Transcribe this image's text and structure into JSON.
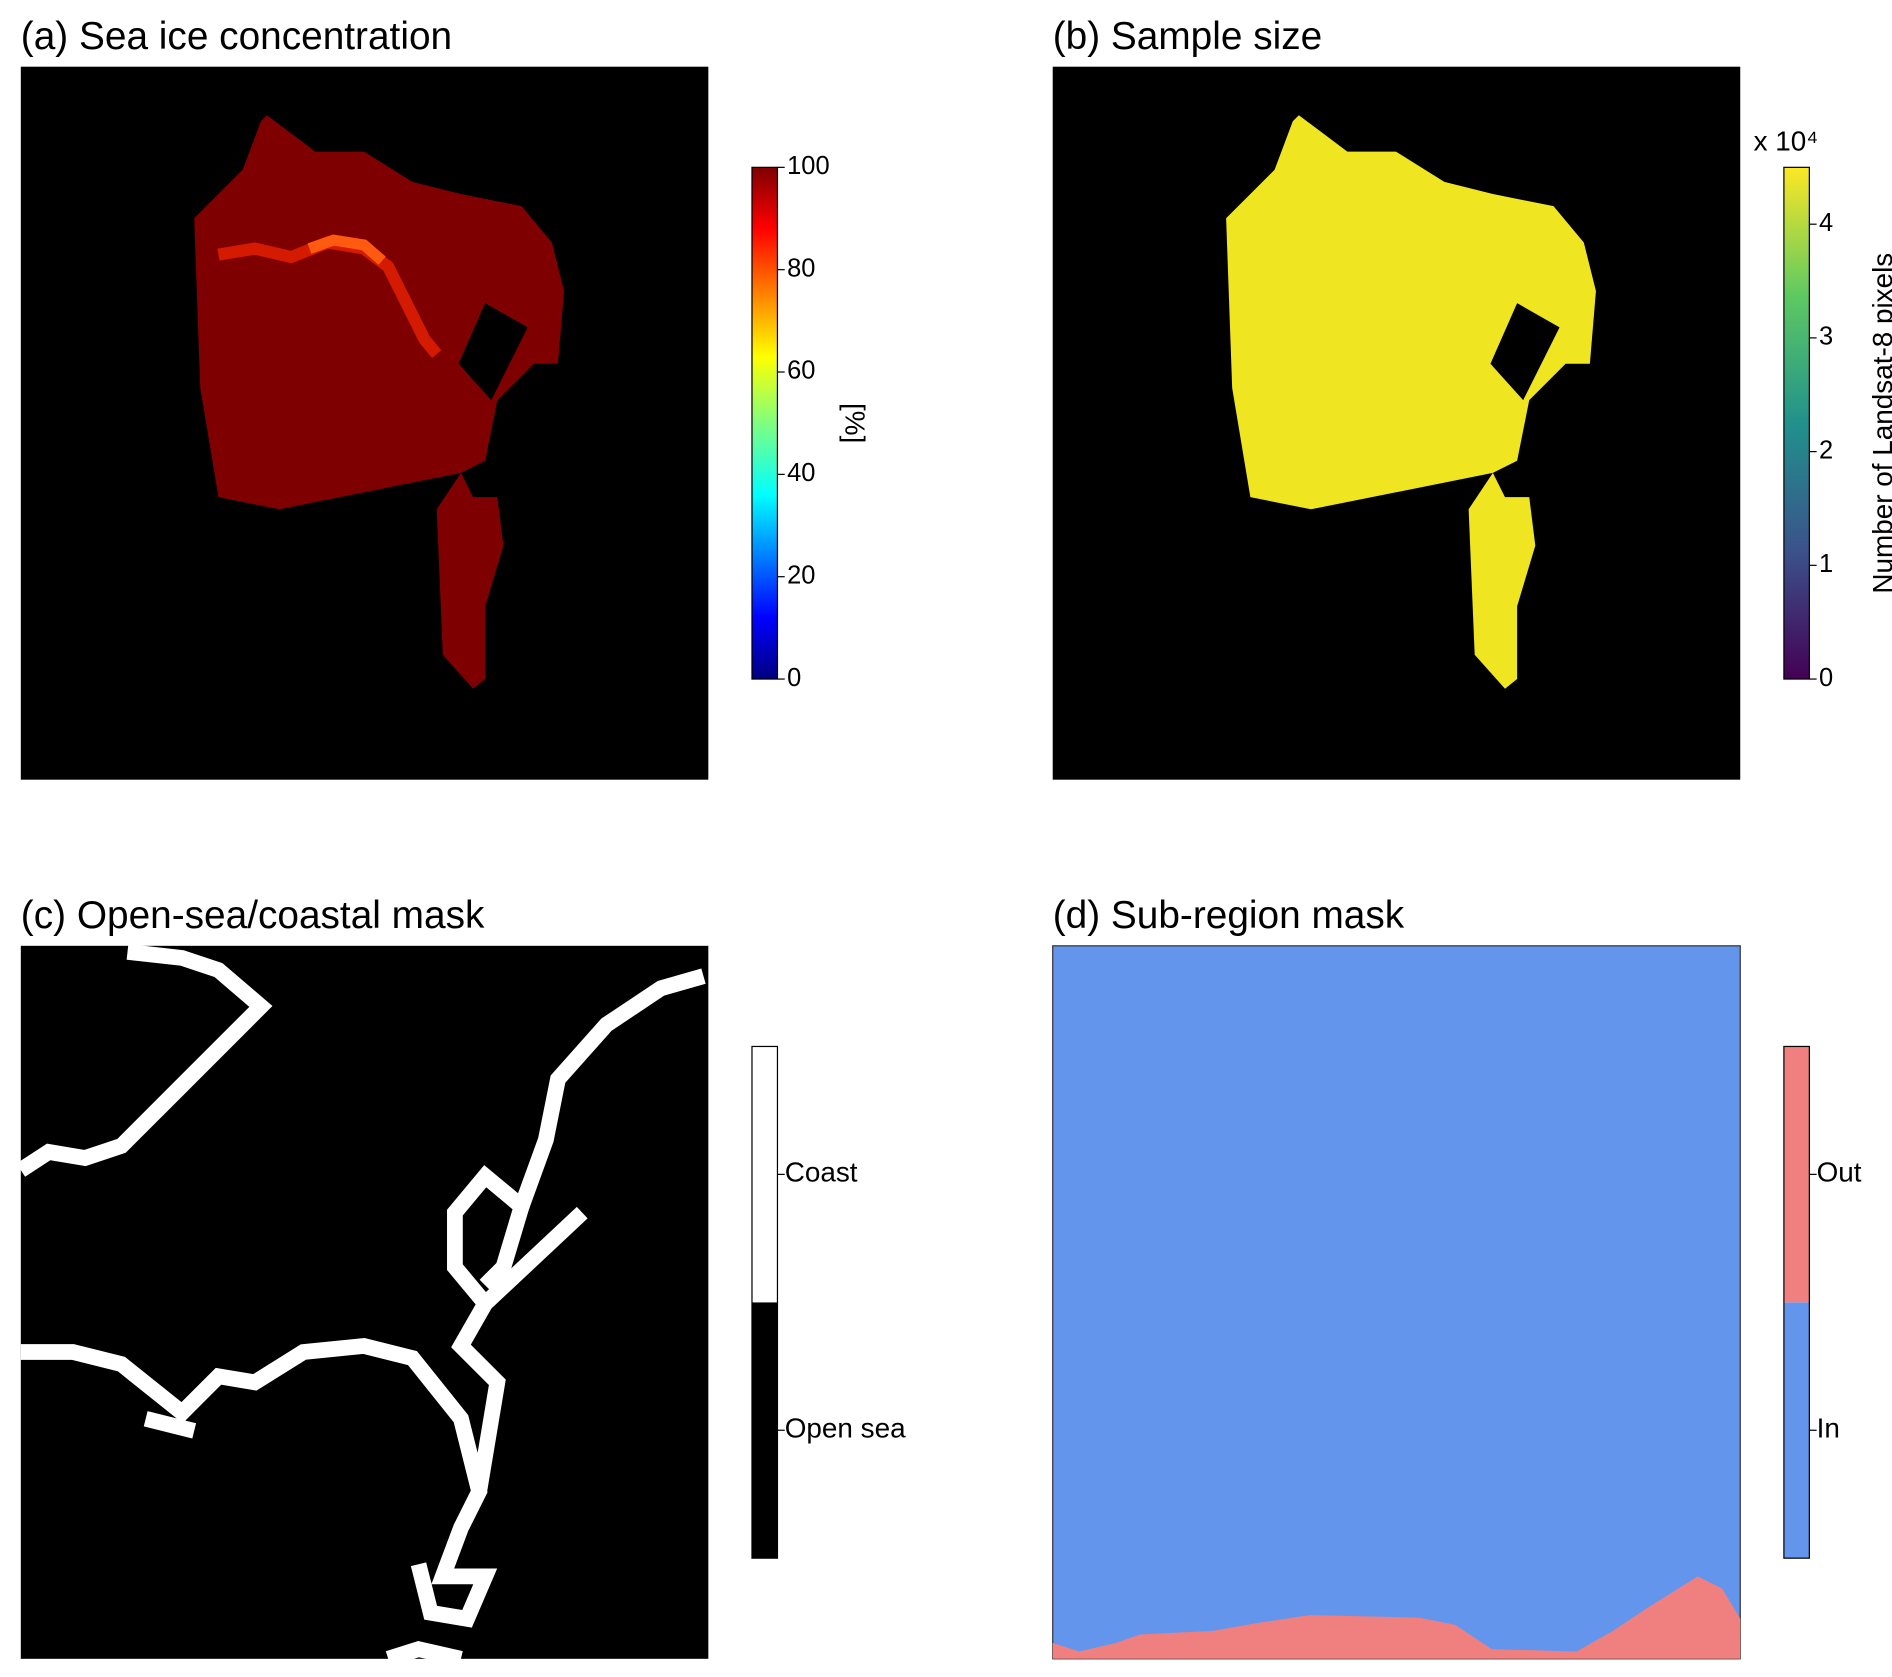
{
  "chart_data": [
    {
      "type": "continuous",
      "title": "(a) Sea ice concentration",
      "colormap": "jet",
      "colorbar_label": "[%]",
      "ylim": [
        0,
        100
      ],
      "yticks": [
        0,
        20,
        40,
        60,
        80,
        100
      ]
    },
    {
      "type": "continuous",
      "title": "(b) Sample size",
      "colormap": "viridis",
      "colorbar_label": "Number of Landsat-8 pixels",
      "offset_label": "x 10⁴",
      "ylim": [
        0,
        4.5
      ],
      "yticks": [
        0,
        1,
        2,
        3,
        4
      ]
    },
    {
      "type": "categorical",
      "title": "(c) Open-sea/coastal mask",
      "categories": [
        "Open sea",
        "Coast"
      ],
      "colors": [
        "#000000",
        "#ffffff"
      ]
    },
    {
      "type": "categorical",
      "title": "(d) Sub-region mask",
      "categories": [
        "In",
        "Out"
      ],
      "colors": [
        "#6495ed",
        "#f08080"
      ]
    }
  ]
}
